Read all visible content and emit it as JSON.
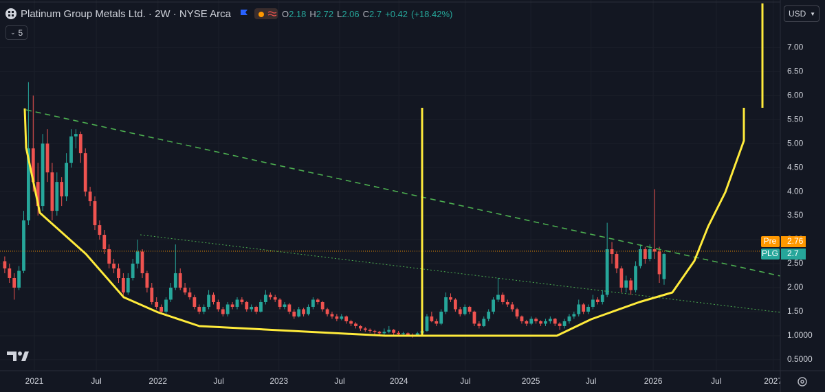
{
  "chart_data": {
    "type": "candlestick",
    "title": "Platinum Group Metals Ltd. · 2W · NYSE Arca",
    "ohlc_labels": [
      "O",
      "H",
      "L",
      "C"
    ],
    "change": {
      "value": 0.42,
      "label": "+0.42"
    },
    "change_pct": {
      "value": 18.42,
      "label": "(+18.42%)"
    },
    "indicators_collapsed": "5",
    "currency": "USD",
    "symbol": "PLG",
    "premarket": {
      "label": "Pre",
      "value": 2.76
    },
    "up_color": "#26a69a",
    "down_color": "#ef5350",
    "ylim": [
      0.27,
      7.99
    ],
    "yticks": [
      {
        "value": 0.5,
        "label": "0.5000"
      },
      {
        "value": 1,
        "label": "1.0000"
      },
      {
        "value": 1.5,
        "label": "1.50"
      },
      {
        "value": 2,
        "label": "2.00"
      },
      {
        "value": 2.5,
        "label": "2.50"
      },
      {
        "value": 3,
        "label": "3.00"
      },
      {
        "value": 3.5,
        "label": "3.50"
      },
      {
        "value": 4,
        "label": "4.00"
      },
      {
        "value": 4.5,
        "label": "4.50"
      },
      {
        "value": 5,
        "label": "5.00"
      },
      {
        "value": 5.5,
        "label": "5.50"
      },
      {
        "value": 6,
        "label": "6.00"
      },
      {
        "value": 6.5,
        "label": "6.50"
      },
      {
        "value": 7,
        "label": "7.00"
      }
    ],
    "xlim": [
      -1,
      163.5
    ],
    "xticks": [
      {
        "value": 6.25,
        "label": "2021"
      },
      {
        "value": 19.3,
        "label": "Jul"
      },
      {
        "value": 32.3,
        "label": "2022"
      },
      {
        "value": 45.1,
        "label": "Jul"
      },
      {
        "value": 57.8,
        "label": "2023"
      },
      {
        "value": 70.6,
        "label": "Jul"
      },
      {
        "value": 83.1,
        "label": "2024"
      },
      {
        "value": 97.1,
        "label": "Jul"
      },
      {
        "value": 110.9,
        "label": "2025"
      },
      {
        "value": 123.6,
        "label": "Jul"
      },
      {
        "value": 136.7,
        "label": "2026"
      },
      {
        "value": 150,
        "label": "Jul"
      },
      {
        "value": 162,
        "label": "2027"
      }
    ],
    "candles": [
      [
        2.55,
        2.65,
        2.3,
        2.4
      ],
      [
        2.4,
        2.5,
        2.1,
        2.2
      ],
      [
        2.2,
        2.3,
        1.75,
        2.0
      ],
      [
        2.0,
        2.45,
        1.95,
        2.35
      ],
      [
        2.35,
        3.6,
        2.3,
        3.4
      ],
      [
        3.4,
        6.28,
        3.3,
        4.9
      ],
      [
        4.9,
        6.0,
        4.0,
        4.2
      ],
      [
        4.2,
        4.6,
        3.5,
        3.7
      ],
      [
        3.7,
        5.2,
        3.6,
        5.0
      ],
      [
        5.0,
        5.3,
        4.2,
        4.4
      ],
      [
        4.4,
        4.6,
        3.4,
        3.6
      ],
      [
        3.6,
        4.4,
        3.5,
        4.2
      ],
      [
        4.2,
        4.3,
        3.7,
        3.9
      ],
      [
        3.9,
        4.8,
        3.8,
        4.6
      ],
      [
        4.6,
        5.3,
        4.5,
        5.15
      ],
      [
        5.15,
        5.3,
        4.9,
        5.2
      ],
      [
        5.2,
        5.25,
        4.6,
        4.8
      ],
      [
        4.8,
        4.9,
        3.9,
        4.0
      ],
      [
        4.0,
        4.1,
        3.7,
        3.8
      ],
      [
        3.8,
        3.9,
        3.2,
        3.3
      ],
      [
        3.3,
        3.4,
        3.0,
        3.1
      ],
      [
        3.1,
        3.2,
        2.7,
        2.8
      ],
      [
        2.8,
        2.9,
        2.4,
        2.5
      ],
      [
        2.5,
        2.6,
        2.3,
        2.4
      ],
      [
        2.4,
        2.5,
        2.1,
        2.2
      ],
      [
        2.2,
        2.3,
        1.85,
        1.9
      ],
      [
        1.9,
        2.3,
        1.85,
        2.2
      ],
      [
        2.2,
        2.6,
        2.15,
        2.5
      ],
      [
        2.5,
        3.0,
        2.4,
        2.75
      ],
      [
        2.75,
        2.8,
        2.2,
        2.3
      ],
      [
        2.3,
        2.35,
        1.9,
        2.0
      ],
      [
        2.0,
        2.1,
        1.65,
        1.7
      ],
      [
        1.7,
        1.8,
        1.55,
        1.6
      ],
      [
        1.6,
        1.65,
        1.45,
        1.5
      ],
      [
        1.5,
        1.8,
        1.45,
        1.75
      ],
      [
        1.75,
        2.1,
        1.7,
        2.0
      ],
      [
        2.0,
        2.9,
        1.95,
        2.3
      ],
      [
        2.3,
        2.4,
        1.95,
        2.0
      ],
      [
        2.0,
        2.1,
        1.85,
        1.9
      ],
      [
        1.9,
        2.0,
        1.75,
        1.8
      ],
      [
        1.8,
        1.85,
        1.55,
        1.6
      ],
      [
        1.6,
        1.65,
        1.45,
        1.5
      ],
      [
        1.5,
        1.65,
        1.45,
        1.6
      ],
      [
        1.6,
        1.95,
        1.55,
        1.85
      ],
      [
        1.85,
        1.9,
        1.65,
        1.7
      ],
      [
        1.7,
        1.75,
        1.5,
        1.55
      ],
      [
        1.55,
        1.6,
        1.4,
        1.45
      ],
      [
        1.45,
        1.7,
        1.4,
        1.65
      ],
      [
        1.65,
        1.7,
        1.55,
        1.6
      ],
      [
        1.6,
        1.8,
        1.55,
        1.75
      ],
      [
        1.75,
        1.8,
        1.65,
        1.7
      ],
      [
        1.7,
        1.72,
        1.5,
        1.55
      ],
      [
        1.55,
        1.65,
        1.5,
        1.6
      ],
      [
        1.6,
        1.62,
        1.45,
        1.5
      ],
      [
        1.5,
        1.75,
        1.48,
        1.7
      ],
      [
        1.7,
        1.95,
        1.65,
        1.85
      ],
      [
        1.85,
        1.9,
        1.75,
        1.8
      ],
      [
        1.8,
        1.85,
        1.7,
        1.75
      ],
      [
        1.75,
        1.78,
        1.55,
        1.6
      ],
      [
        1.6,
        1.7,
        1.55,
        1.65
      ],
      [
        1.65,
        1.68,
        1.45,
        1.5
      ],
      [
        1.5,
        1.55,
        1.35,
        1.4
      ],
      [
        1.4,
        1.6,
        1.38,
        1.55
      ],
      [
        1.55,
        1.58,
        1.4,
        1.45
      ],
      [
        1.45,
        1.65,
        1.42,
        1.6
      ],
      [
        1.6,
        1.8,
        1.55,
        1.75
      ],
      [
        1.75,
        1.78,
        1.65,
        1.7
      ],
      [
        1.7,
        1.72,
        1.5,
        1.55
      ],
      [
        1.55,
        1.58,
        1.4,
        1.45
      ],
      [
        1.45,
        1.5,
        1.35,
        1.4
      ],
      [
        1.4,
        1.45,
        1.3,
        1.35
      ],
      [
        1.35,
        1.45,
        1.32,
        1.4
      ],
      [
        1.4,
        1.42,
        1.25,
        1.3
      ],
      [
        1.3,
        1.33,
        1.2,
        1.25
      ],
      [
        1.25,
        1.28,
        1.15,
        1.2
      ],
      [
        1.2,
        1.22,
        1.1,
        1.15
      ],
      [
        1.15,
        1.18,
        1.08,
        1.12
      ],
      [
        1.12,
        1.15,
        1.06,
        1.1
      ],
      [
        1.1,
        1.12,
        1.03,
        1.08
      ],
      [
        1.08,
        1.1,
        1.0,
        1.05
      ],
      [
        1.05,
        1.15,
        1.02,
        1.08
      ],
      [
        1.08,
        1.2,
        1.05,
        1.12
      ],
      [
        1.12,
        1.14,
        1.02,
        1.06
      ],
      [
        1.06,
        1.1,
        0.98,
        1.03
      ],
      [
        1.03,
        1.08,
        1.0,
        1.05
      ],
      [
        1.05,
        1.07,
        0.98,
        1.02
      ],
      [
        1.02,
        1.05,
        0.96,
        1.0
      ],
      [
        1.0,
        1.08,
        0.98,
        1.05
      ],
      [
        1.05,
        1.15,
        1.03,
        1.1
      ],
      [
        1.1,
        1.45,
        1.08,
        1.4
      ],
      [
        1.4,
        1.5,
        1.28,
        1.3
      ],
      [
        1.3,
        1.35,
        1.2,
        1.25
      ],
      [
        1.25,
        1.55,
        1.22,
        1.5
      ],
      [
        1.5,
        1.9,
        1.45,
        1.8
      ],
      [
        1.8,
        1.88,
        1.7,
        1.75
      ],
      [
        1.75,
        1.78,
        1.5,
        1.55
      ],
      [
        1.55,
        1.6,
        1.4,
        1.45
      ],
      [
        1.45,
        1.65,
        1.42,
        1.6
      ],
      [
        1.6,
        1.62,
        1.45,
        1.5
      ],
      [
        1.5,
        1.52,
        1.2,
        1.25
      ],
      [
        1.25,
        1.3,
        1.15,
        1.2
      ],
      [
        1.2,
        1.4,
        1.18,
        1.35
      ],
      [
        1.35,
        1.55,
        1.3,
        1.5
      ],
      [
        1.5,
        1.8,
        1.45,
        1.75
      ],
      [
        1.75,
        2.2,
        1.7,
        1.85
      ],
      [
        1.85,
        1.9,
        1.65,
        1.7
      ],
      [
        1.7,
        1.75,
        1.6,
        1.65
      ],
      [
        1.65,
        1.7,
        1.5,
        1.55
      ],
      [
        1.55,
        1.58,
        1.35,
        1.4
      ],
      [
        1.4,
        1.42,
        1.25,
        1.3
      ],
      [
        1.3,
        1.33,
        1.2,
        1.25
      ],
      [
        1.25,
        1.4,
        1.22,
        1.35
      ],
      [
        1.35,
        1.38,
        1.25,
        1.3
      ],
      [
        1.3,
        1.32,
        1.2,
        1.25
      ],
      [
        1.25,
        1.35,
        1.2,
        1.3
      ],
      [
        1.3,
        1.4,
        1.25,
        1.35
      ],
      [
        1.35,
        1.37,
        1.2,
        1.25
      ],
      [
        1.25,
        1.28,
        1.12,
        1.2
      ],
      [
        1.2,
        1.35,
        1.15,
        1.3
      ],
      [
        1.3,
        1.45,
        1.25,
        1.4
      ],
      [
        1.4,
        1.5,
        1.35,
        1.45
      ],
      [
        1.45,
        1.75,
        1.4,
        1.65
      ],
      [
        1.65,
        1.68,
        1.45,
        1.5
      ],
      [
        1.5,
        1.65,
        1.45,
        1.6
      ],
      [
        1.6,
        1.85,
        1.55,
        1.75
      ],
      [
        1.75,
        1.8,
        1.65,
        1.7
      ],
      [
        1.7,
        1.95,
        1.65,
        1.85
      ],
      [
        1.85,
        3.35,
        1.8,
        2.8
      ],
      [
        2.8,
        2.95,
        2.5,
        2.7
      ],
      [
        2.7,
        2.75,
        2.3,
        2.4
      ],
      [
        2.4,
        2.45,
        1.9,
        2.0
      ],
      [
        2.0,
        2.25,
        1.9,
        2.15
      ],
      [
        2.15,
        2.2,
        1.85,
        1.95
      ],
      [
        1.95,
        2.55,
        1.9,
        2.45
      ],
      [
        2.45,
        2.9,
        2.4,
        2.8
      ],
      [
        2.8,
        2.85,
        2.5,
        2.6
      ],
      [
        2.6,
        2.9,
        2.55,
        2.8
      ],
      [
        2.8,
        4.05,
        2.6,
        2.75
      ],
      [
        2.75,
        2.85,
        2.1,
        2.28
      ],
      [
        2.18,
        2.72,
        2.06,
        2.7
      ]
    ]
  }
}
